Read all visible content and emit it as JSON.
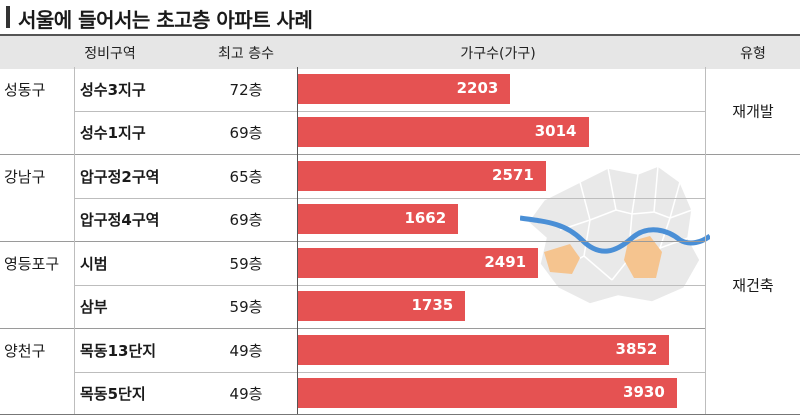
{
  "title": "서울에 들어서는 초고층 아파트 사례",
  "headers": [
    "정비구역",
    "최고 층수",
    "가구수(가구)",
    "유형"
  ],
  "rows": [
    {
      "district": "성동구",
      "zone": "성수3지구",
      "floors": "72층",
      "households": 2203
    },
    {
      "district": "",
      "zone": "성수1지구",
      "floors": "69층",
      "households": 3014
    },
    {
      "district": "강남구",
      "zone": "압구정2구역",
      "floors": "65층",
      "households": 2571
    },
    {
      "district": "",
      "zone": "압구정4구역",
      "floors": "69층",
      "households": 1662
    },
    {
      "district": "영등포구",
      "zone": "시범",
      "floors": "59층",
      "households": 2491
    },
    {
      "district": "",
      "zone": "삼부",
      "floors": "59층",
      "households": 1735
    },
    {
      "district": "양천구",
      "zone": "목동13단지",
      "floors": "49층",
      "households": 3852
    },
    {
      "district": "",
      "zone": "목동5단지",
      "floors": "49층",
      "households": 3930
    }
  ],
  "types": [
    {
      "label": "재개발",
      "rows": [
        0,
        1
      ]
    },
    {
      "label": "재건축",
      "rows": [
        2,
        7
      ]
    }
  ],
  "chart_data": {
    "type": "bar",
    "orientation": "horizontal",
    "title": "서울에 들어서는 초고층 아파트 사례",
    "categories": [
      "성수3지구",
      "성수1지구",
      "압구정2구역",
      "압구정4구역",
      "시범",
      "삼부",
      "목동13단지",
      "목동5단지"
    ],
    "values": [
      2203,
      3014,
      2571,
      1662,
      2491,
      1735,
      3852,
      3930
    ],
    "xlabel": "가구수(가구)",
    "bar_color": "#e55252"
  },
  "colors": {
    "bar": "#e55252",
    "header_bg": "#e6e6e6",
    "map_highlight": "#f5c48f",
    "map_river": "#4a8fd6"
  }
}
